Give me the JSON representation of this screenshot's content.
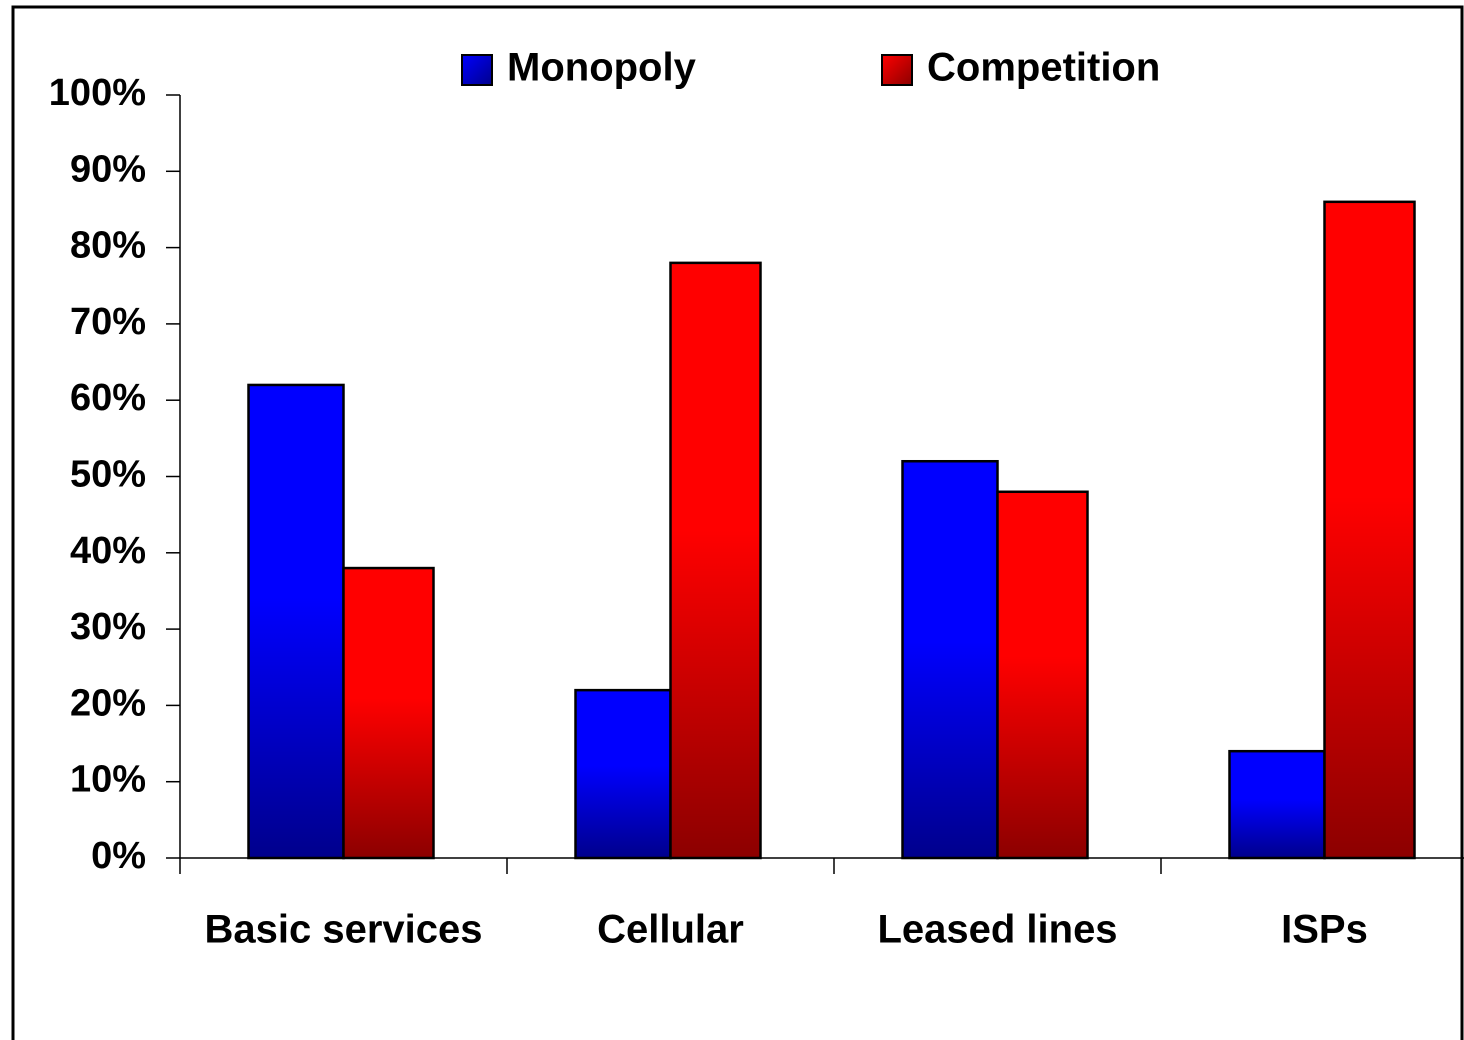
{
  "chart_data": {
    "type": "bar",
    "categories": [
      "Basic services",
      "Cellular",
      "Leased lines",
      "ISPs"
    ],
    "series": [
      {
        "name": "Monopoly",
        "color": "#0000ff",
        "values": [
          62,
          22,
          52,
          14
        ]
      },
      {
        "name": "Competition",
        "color": "#ff0000",
        "values": [
          38,
          78,
          48,
          86
        ]
      }
    ],
    "ylim": [
      0,
      100
    ],
    "yticks": [
      {
        "value": 0,
        "label": "0%"
      },
      {
        "value": 10,
        "label": "10%"
      },
      {
        "value": 20,
        "label": "20%"
      },
      {
        "value": 30,
        "label": "30%"
      },
      {
        "value": 40,
        "label": "40%"
      },
      {
        "value": 50,
        "label": "50%"
      },
      {
        "value": 60,
        "label": "60%"
      },
      {
        "value": 70,
        "label": "70%"
      },
      {
        "value": 80,
        "label": "80%"
      },
      {
        "value": 90,
        "label": "90%"
      },
      {
        "value": 100,
        "label": "100%"
      }
    ],
    "legend": "top"
  }
}
